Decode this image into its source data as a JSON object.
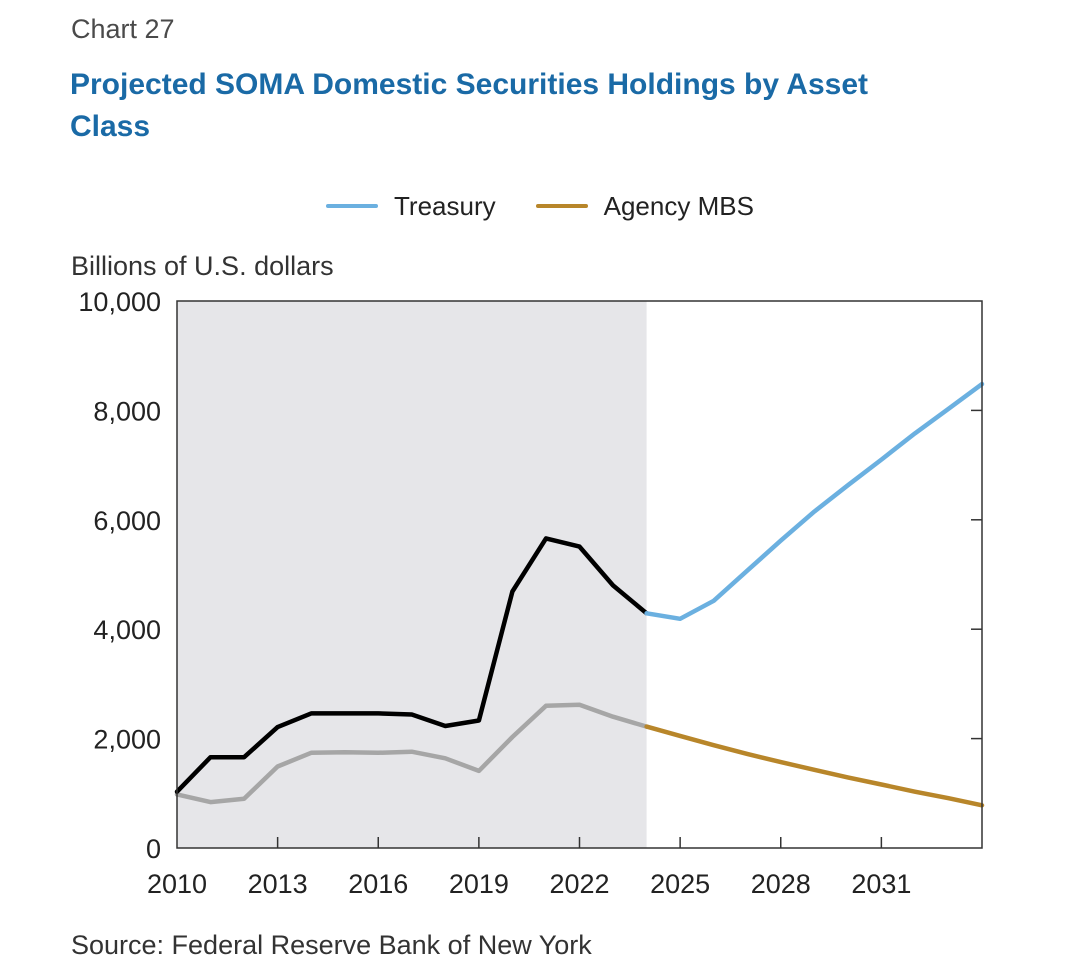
{
  "header": {
    "chart_number": "Chart 27",
    "title": "Projected SOMA Domestic Securities Holdings by Asset Class"
  },
  "chart_data": {
    "type": "line",
    "title": "Projected SOMA Domestic Securities Holdings by Asset Class",
    "ylabel": "Billions of U.S. dollars",
    "xlabel": "",
    "xlim": [
      2010,
      2034
    ],
    "ylim": [
      0,
      10000
    ],
    "x_ticks": [
      2010,
      2013,
      2016,
      2019,
      2022,
      2025,
      2028,
      2031
    ],
    "x_tick_labels": [
      "2010",
      "2013",
      "2016",
      "2019",
      "2022",
      "2025",
      "2028",
      "2031"
    ],
    "y_ticks": [
      0,
      2000,
      4000,
      6000,
      8000,
      10000
    ],
    "y_tick_labels": [
      "0",
      "2,000",
      "4,000",
      "6,000",
      "8,000",
      "10,000"
    ],
    "historical_shading": [
      2010,
      2024
    ],
    "legend_position": "top",
    "colors": {
      "treasury": "#6bb0e0",
      "agency_mbs": "#b8862a",
      "treasury_historical": "#000000",
      "agency_mbs_historical": "#a6a6a6",
      "shading": "#e6e6e9"
    },
    "series": [
      {
        "name": "Treasury",
        "x": [
          2010,
          2011,
          2012,
          2013,
          2014,
          2015,
          2016,
          2017,
          2018,
          2019,
          2020,
          2021,
          2022,
          2023,
          2024,
          2025,
          2026,
          2027,
          2028,
          2029,
          2030,
          2031,
          2032,
          2033,
          2034
        ],
        "values": [
          1030,
          1660,
          1660,
          2210,
          2460,
          2460,
          2460,
          2440,
          2230,
          2330,
          4690,
          5660,
          5510,
          4800,
          4290,
          4190,
          4520,
          5070,
          5620,
          6150,
          6630,
          7100,
          7580,
          8030,
          8480
        ]
      },
      {
        "name": "Agency MBS",
        "x": [
          2010,
          2011,
          2012,
          2013,
          2014,
          2015,
          2016,
          2017,
          2018,
          2019,
          2020,
          2021,
          2022,
          2023,
          2024,
          2025,
          2026,
          2027,
          2028,
          2029,
          2030,
          2031,
          2032,
          2033,
          2034
        ],
        "values": [
          980,
          840,
          900,
          1490,
          1740,
          1750,
          1740,
          1760,
          1640,
          1410,
          2030,
          2600,
          2620,
          2400,
          2220,
          2050,
          1880,
          1720,
          1570,
          1430,
          1290,
          1160,
          1030,
          910,
          780
        ]
      }
    ]
  },
  "legend": {
    "items": [
      {
        "label": "Treasury",
        "color": "#6bb0e0"
      },
      {
        "label": "Agency MBS",
        "color": "#b8862a"
      }
    ]
  },
  "source_partial": "Source: Federal Reserve Bank of New York"
}
